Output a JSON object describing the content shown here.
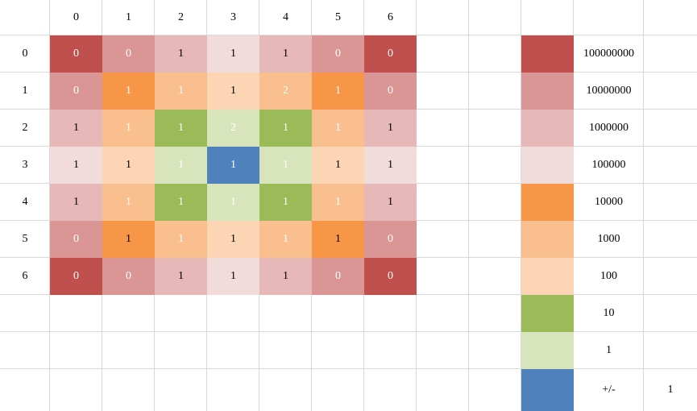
{
  "grid": {
    "column_headers": [
      "0",
      "1",
      "2",
      "3",
      "4",
      "5",
      "6"
    ],
    "row_headers": [
      "0",
      "1",
      "2",
      "3",
      "4",
      "5",
      "6"
    ],
    "values": [
      [
        "0",
        "0",
        "1",
        "1",
        "1",
        "0",
        "0"
      ],
      [
        "0",
        "1",
        "1",
        "1",
        "2",
        "1",
        "0"
      ],
      [
        "1",
        "1",
        "1",
        "2",
        "1",
        "1",
        "1"
      ],
      [
        "1",
        "1",
        "1",
        "1",
        "1",
        "1",
        "1"
      ],
      [
        "1",
        "1",
        "1",
        "1",
        "1",
        "1",
        "1"
      ],
      [
        "0",
        "1",
        "1",
        "1",
        "1",
        "1",
        "0"
      ],
      [
        "0",
        "0",
        "1",
        "1",
        "1",
        "0",
        "0"
      ]
    ],
    "color_index": [
      [
        0,
        1,
        2,
        3,
        2,
        1,
        0
      ],
      [
        1,
        4,
        5,
        6,
        5,
        4,
        1
      ],
      [
        2,
        5,
        7,
        8,
        7,
        5,
        2
      ],
      [
        3,
        6,
        8,
        9,
        8,
        6,
        3
      ],
      [
        2,
        5,
        7,
        8,
        7,
        5,
        2
      ],
      [
        1,
        4,
        5,
        6,
        5,
        4,
        1
      ],
      [
        0,
        1,
        2,
        3,
        2,
        1,
        0
      ]
    ],
    "white_text": [
      [
        true,
        true,
        false,
        false,
        false,
        true,
        true
      ],
      [
        true,
        true,
        true,
        false,
        true,
        true,
        true
      ],
      [
        false,
        true,
        true,
        true,
        true,
        true,
        false
      ],
      [
        false,
        false,
        true,
        true,
        true,
        false,
        false
      ],
      [
        false,
        true,
        true,
        true,
        true,
        true,
        false
      ],
      [
        true,
        false,
        true,
        false,
        true,
        false,
        true
      ],
      [
        true,
        true,
        false,
        false,
        false,
        true,
        true
      ]
    ]
  },
  "legend": {
    "entries": [
      {
        "color": "#c0504d",
        "label": "100000000"
      },
      {
        "color": "#da9694",
        "label": "10000000"
      },
      {
        "color": "#e6b8b7",
        "label": "1000000"
      },
      {
        "color": "#f2dcdb",
        "label": "100000"
      },
      {
        "color": "#f79646",
        "label": "10000"
      },
      {
        "color": "#fabf8f",
        "label": "1000"
      },
      {
        "color": "#fcd5b4",
        "label": "100"
      },
      {
        "color": "#9bbb59",
        "label": "10"
      },
      {
        "color": "#d8e4bc",
        "label": "1"
      },
      {
        "color": "#4f81bd",
        "label": "+/-"
      }
    ],
    "sign_value": "1"
  },
  "colors": {
    "gridline": "#d9d9d9",
    "text_dark": "#000000",
    "text_light": "#ffffff"
  }
}
